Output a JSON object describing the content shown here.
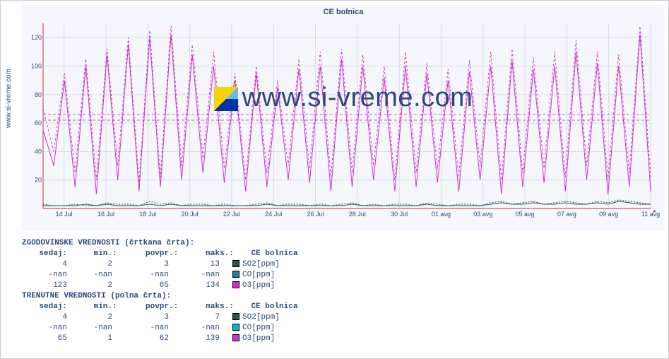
{
  "title": "CE bolnica",
  "ylabel_rot": "www.si-vreme.com",
  "watermark": "www.si-vreme.com",
  "watermark_icon_colors": {
    "tl": "#f5d400",
    "tr": "#69b6f0",
    "br": "#0033aa"
  },
  "chart": {
    "type": "line",
    "background": "#f5f7fc",
    "grid_color": "#d7dbe8",
    "ref_line_color": "#cc55cc",
    "ref_lines_y": [
      62,
      66
    ],
    "xlim": [
      0,
      29
    ],
    "ylim": [
      0,
      130
    ],
    "yticks": [
      20,
      40,
      60,
      80,
      100,
      120
    ],
    "xticks": [
      "14 Jul",
      "16 Jul",
      "18 Jul",
      "20 Jul",
      "22 Jul",
      "24 Jul",
      "26 Jul",
      "28 Jul",
      "30 Jul",
      "01 avg",
      "03 avg",
      "05 avg",
      "07 avg",
      "09 avg",
      "11 avg"
    ],
    "label_fontsize": 9,
    "tick_color": "#2b4a7a",
    "series": [
      {
        "name": "O3 hist (dashed)",
        "color": "#cc33cc",
        "dash": "3,3",
        "width": 1,
        "y": [
          70,
          40,
          95,
          25,
          105,
          20,
          112,
          30,
          120,
          18,
          125,
          22,
          128,
          30,
          115,
          35,
          110,
          28,
          95,
          20,
          100,
          25,
          90,
          30,
          105,
          28,
          110,
          22,
          112,
          25,
          108,
          30,
          100,
          20,
          110,
          25,
          102,
          28,
          98,
          22,
          104,
          30,
          110,
          20,
          112,
          25,
          106,
          28,
          110,
          22,
          118,
          30,
          110,
          20,
          108,
          25,
          128,
          22
        ]
      },
      {
        "name": "O3 current (solid)",
        "color": "#cc33cc",
        "dash": "",
        "width": 1,
        "y": [
          55,
          30,
          90,
          15,
          100,
          10,
          108,
          20,
          115,
          12,
          120,
          15,
          122,
          20,
          108,
          25,
          100,
          18,
          90,
          12,
          95,
          15,
          85,
          20,
          98,
          18,
          100,
          12,
          105,
          15,
          100,
          20,
          92,
          12,
          100,
          15,
          95,
          18,
          90,
          12,
          96,
          20,
          100,
          10,
          104,
          15,
          98,
          18,
          100,
          12,
          110,
          20,
          102,
          10,
          100,
          15,
          122,
          12
        ]
      },
      {
        "name": "SO2 hist (dashed)",
        "color": "#1e5a4a",
        "dash": "2,2",
        "width": 1,
        "y": [
          3,
          2,
          2,
          3,
          2,
          2,
          4,
          3,
          3,
          2,
          5,
          3,
          4,
          2,
          3,
          3,
          2,
          3,
          2,
          2,
          3,
          4,
          2,
          3,
          3,
          2,
          3,
          2,
          3,
          4,
          2,
          3,
          2,
          3,
          3,
          2,
          4,
          3,
          2,
          3,
          3,
          2,
          4,
          5,
          3,
          4,
          5,
          3,
          4,
          5,
          4,
          3,
          5,
          4,
          6,
          5,
          4,
          3
        ]
      },
      {
        "name": "SO2 current (solid)",
        "color": "#1e5a4a",
        "dash": "",
        "width": 1,
        "y": [
          2,
          2,
          2,
          2,
          3,
          2,
          3,
          2,
          2,
          2,
          3,
          2,
          3,
          2,
          2,
          2,
          2,
          2,
          2,
          2,
          2,
          3,
          2,
          2,
          2,
          2,
          2,
          2,
          2,
          3,
          2,
          2,
          2,
          2,
          2,
          2,
          3,
          2,
          2,
          2,
          2,
          2,
          3,
          4,
          3,
          3,
          4,
          3,
          3,
          4,
          3,
          3,
          4,
          3,
          5,
          4,
          3,
          3
        ]
      }
    ]
  },
  "legend": {
    "hist_header": "ZGODOVINSKE VREDNOSTI (črtkana črta):",
    "cur_header": "TRENUTNE VREDNOSTI (polna črta):",
    "cols": {
      "sedaj": "sedaj:",
      "min": "min.:",
      "povpr": "povpr.:",
      "maks": "maks.:",
      "name": "CE bolnica"
    },
    "hist_rows": [
      {
        "sedaj": "4",
        "min": "2",
        "povpr": "3",
        "maks": "13",
        "label": "SO2[ppm]",
        "sw": "#1e5a4a"
      },
      {
        "sedaj": "-nan",
        "min": "-nan",
        "povpr": "-nan",
        "maks": "-nan",
        "label": "CO[ppm]",
        "sw": "#1188aa"
      },
      {
        "sedaj": "123",
        "min": "2",
        "povpr": "65",
        "maks": "134",
        "label": "O3[ppm]",
        "sw": "#cc33cc"
      }
    ],
    "cur_rows": [
      {
        "sedaj": "4",
        "min": "2",
        "povpr": "3",
        "maks": "7",
        "label": "SO2[ppm]",
        "sw": "#1e5a4a"
      },
      {
        "sedaj": "-nan",
        "min": "-nan",
        "povpr": "-nan",
        "maks": "-nan",
        "label": "CO[ppm]",
        "sw": "#00b8d0"
      },
      {
        "sedaj": "65",
        "min": "1",
        "povpr": "62",
        "maks": "139",
        "label": "O3[ppm]",
        "sw": "#cc33cc"
      }
    ]
  }
}
